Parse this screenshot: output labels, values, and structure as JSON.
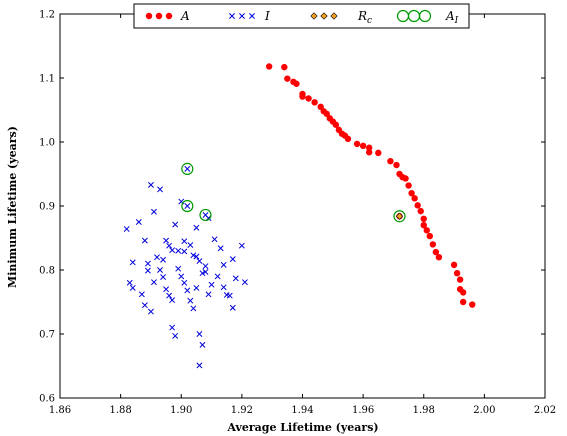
{
  "chart_data": {
    "type": "scatter",
    "xlabel": "Average Lifetime (years)",
    "ylabel": "Minimum Lifetime (years)",
    "xlim": [
      1.86,
      2.02
    ],
    "ylim": [
      0.6,
      1.2
    ],
    "xticks": [
      "1.86",
      "1.88",
      "1.90",
      "1.92",
      "1.94",
      "1.96",
      "1.98",
      "2.00",
      "2.02"
    ],
    "yticks": [
      "0.6",
      "0.7",
      "0.8",
      "0.9",
      "1.0",
      "1.1",
      "1.2"
    ],
    "grid": false,
    "legend_position": "top-center",
    "series": [
      {
        "name": "A",
        "marker": "dot",
        "color": "#ff0000",
        "points": [
          [
            1.929,
            1.118
          ],
          [
            1.934,
            1.117
          ],
          [
            1.935,
            1.099
          ],
          [
            1.937,
            1.094
          ],
          [
            1.938,
            1.091
          ],
          [
            1.94,
            1.075
          ],
          [
            1.94,
            1.071
          ],
          [
            1.942,
            1.068
          ],
          [
            1.944,
            1.062
          ],
          [
            1.946,
            1.055
          ],
          [
            1.947,
            1.048
          ],
          [
            1.948,
            1.044
          ],
          [
            1.949,
            1.037
          ],
          [
            1.95,
            1.032
          ],
          [
            1.951,
            1.027
          ],
          [
            1.952,
            1.019
          ],
          [
            1.953,
            1.013
          ],
          [
            1.954,
            1.01
          ],
          [
            1.955,
            1.005
          ],
          [
            1.958,
            0.997
          ],
          [
            1.96,
            0.994
          ],
          [
            1.962,
            0.991
          ],
          [
            1.962,
            0.984
          ],
          [
            1.965,
            0.983
          ],
          [
            1.969,
            0.97
          ],
          [
            1.971,
            0.964
          ],
          [
            1.972,
            0.95
          ],
          [
            1.973,
            0.945
          ],
          [
            1.974,
            0.943
          ],
          [
            1.975,
            0.932
          ],
          [
            1.976,
            0.92
          ],
          [
            1.977,
            0.912
          ],
          [
            1.978,
            0.901
          ],
          [
            1.979,
            0.892
          ],
          [
            1.98,
            0.88
          ],
          [
            1.98,
            0.87
          ],
          [
            1.981,
            0.862
          ],
          [
            1.982,
            0.853
          ],
          [
            1.983,
            0.84
          ],
          [
            1.984,
            0.828
          ],
          [
            1.985,
            0.82
          ],
          [
            1.99,
            0.808
          ],
          [
            1.991,
            0.795
          ],
          [
            1.992,
            0.785
          ],
          [
            1.992,
            0.77
          ],
          [
            1.993,
            0.765
          ],
          [
            1.993,
            0.75
          ],
          [
            1.996,
            0.746
          ],
          [
            1.972,
            0.884
          ]
        ]
      },
      {
        "name": "I",
        "marker": "x",
        "color": "#0000dd",
        "points": [
          [
            1.882,
            0.864
          ],
          [
            1.884,
            0.812
          ],
          [
            1.886,
            0.875
          ],
          [
            1.888,
            0.846
          ],
          [
            1.889,
            0.799
          ],
          [
            1.89,
            0.933
          ],
          [
            1.891,
            0.891
          ],
          [
            1.893,
            0.926
          ],
          [
            1.895,
            0.846
          ],
          [
            1.896,
            0.838
          ],
          [
            1.898,
            0.871
          ],
          [
            1.899,
            0.83
          ],
          [
            1.9,
            0.907
          ],
          [
            1.901,
            0.829
          ],
          [
            1.903,
            0.839
          ],
          [
            1.905,
            0.866
          ],
          [
            1.905,
            0.821
          ],
          [
            1.907,
            0.795
          ],
          [
            1.908,
            0.806
          ],
          [
            1.909,
            0.881
          ],
          [
            1.911,
            0.848
          ],
          [
            1.913,
            0.834
          ],
          [
            1.914,
            0.808
          ],
          [
            1.915,
            0.761
          ],
          [
            1.917,
            0.817
          ],
          [
            1.918,
            0.787
          ],
          [
            1.92,
            0.838
          ],
          [
            1.921,
            0.781
          ],
          [
            1.883,
            0.78
          ],
          [
            1.884,
            0.772
          ],
          [
            1.887,
            0.762
          ],
          [
            1.888,
            0.745
          ],
          [
            1.89,
            0.735
          ],
          [
            1.891,
            0.781
          ],
          [
            1.892,
            0.82
          ],
          [
            1.893,
            0.8
          ],
          [
            1.894,
            0.789
          ],
          [
            1.895,
            0.77
          ],
          [
            1.896,
            0.76
          ],
          [
            1.897,
            0.753
          ],
          [
            1.897,
            0.71
          ],
          [
            1.898,
            0.697
          ],
          [
            1.899,
            0.802
          ],
          [
            1.9,
            0.79
          ],
          [
            1.901,
            0.78
          ],
          [
            1.902,
            0.768
          ],
          [
            1.903,
            0.752
          ],
          [
            1.904,
            0.74
          ],
          [
            1.905,
            0.772
          ],
          [
            1.906,
            0.7
          ],
          [
            1.906,
            0.651
          ],
          [
            1.907,
            0.683
          ],
          [
            1.909,
            0.762
          ],
          [
            1.91,
            0.777
          ],
          [
            1.912,
            0.79
          ],
          [
            1.914,
            0.773
          ],
          [
            1.916,
            0.76
          ],
          [
            1.917,
            0.741
          ],
          [
            1.889,
            0.81
          ],
          [
            1.894,
            0.816
          ],
          [
            1.897,
            0.831
          ],
          [
            1.901,
            0.845
          ],
          [
            1.904,
            0.823
          ],
          [
            1.906,
            0.814
          ],
          [
            1.908,
            0.797
          ],
          [
            1.902,
            0.958
          ],
          [
            1.902,
            0.9
          ],
          [
            1.908,
            0.886
          ]
        ]
      },
      {
        "name": "R_c",
        "marker": "diamond",
        "color": "#f0a020",
        "points": [
          [
            1.972,
            0.884
          ]
        ]
      },
      {
        "name": "A_I",
        "marker": "ring",
        "color": "#009900",
        "points": [
          [
            1.902,
            0.958
          ],
          [
            1.902,
            0.9
          ],
          [
            1.908,
            0.886
          ],
          [
            1.972,
            0.884
          ]
        ]
      }
    ]
  }
}
